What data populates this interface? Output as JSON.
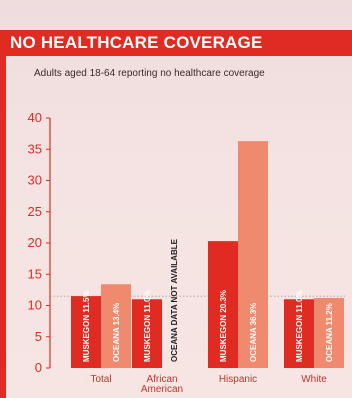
{
  "header": {
    "title": "NO HEALTHCARE COVERAGE"
  },
  "chart_data": {
    "type": "bar",
    "subtitle": "Adults aged 18-64 reporting no healthcare coverage",
    "categories": [
      "Total",
      "African American",
      "Hispanic",
      "White"
    ],
    "series": [
      {
        "name": "MUSKEGON",
        "values": [
          11.5,
          11.0,
          20.3,
          11.0
        ],
        "labels": [
          "MUSKEGON 11.5%",
          "MUSKEGON 11.0%",
          "MUSKEGON 20.3%",
          "MUSKEGON 11.0%"
        ],
        "color": "#e02b22"
      },
      {
        "name": "OCEANA",
        "values": [
          13.4,
          null,
          36.3,
          11.2
        ],
        "labels": [
          "OCEANA 13.4%",
          null,
          "OCEANA 36.3%",
          "OCEANA 11.2%"
        ],
        "color": "#f08a6e"
      }
    ],
    "annotations": [
      "OCEANA DATA NOT AVAILABLE"
    ],
    "ylim": [
      0,
      40
    ],
    "yticks": [
      0,
      5,
      10,
      15,
      20,
      25,
      30,
      35,
      40
    ],
    "reference_line": 11.5,
    "grid": false
  },
  "colors": {
    "accent": "#e02b22",
    "oceana": "#f08a6e",
    "background": "#f3e1e0"
  }
}
